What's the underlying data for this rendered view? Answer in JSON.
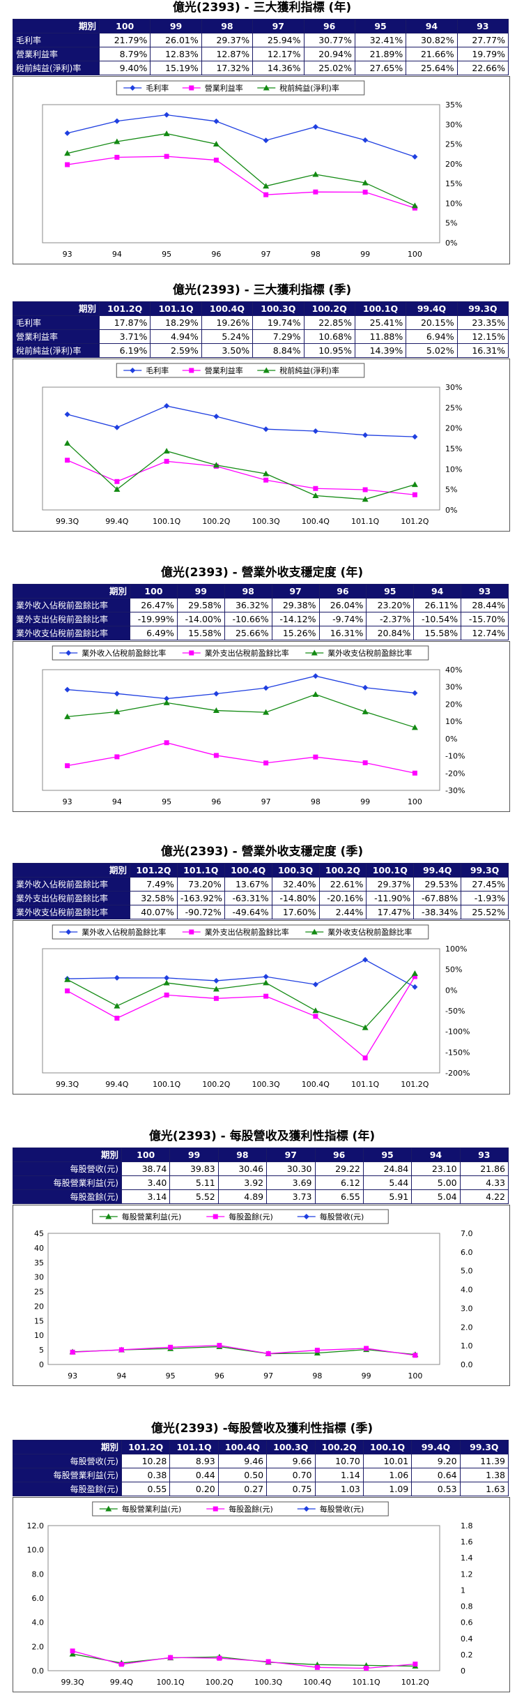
{
  "sections": [
    {
      "title": "億光(2393) - 三大獲利指標 (年)",
      "table": {
        "header_label": "期別",
        "columns": [
          "100",
          "99",
          "98",
          "97",
          "96",
          "95",
          "94",
          "93"
        ],
        "rows": [
          {
            "label": "毛利率",
            "values": [
              "21.79%",
              "26.01%",
              "29.37%",
              "25.94%",
              "30.77%",
              "32.41%",
              "30.82%",
              "27.77%"
            ]
          },
          {
            "label": "營業利益率",
            "values": [
              "8.79%",
              "12.83%",
              "12.87%",
              "12.17%",
              "20.94%",
              "21.89%",
              "21.66%",
              "19.79%"
            ]
          },
          {
            "label": "稅前純益(淨利)率",
            "values": [
              "9.40%",
              "15.19%",
              "17.32%",
              "14.36%",
              "25.02%",
              "27.65%",
              "25.64%",
              "22.66%"
            ]
          }
        ]
      }
    },
    {
      "title": "億光(2393) - 三大獲利指標 (季)",
      "table": {
        "header_label": "期別",
        "columns": [
          "101.2Q",
          "101.1Q",
          "100.4Q",
          "100.3Q",
          "100.2Q",
          "100.1Q",
          "99.4Q",
          "99.3Q"
        ],
        "rows": [
          {
            "label": "毛利率",
            "values": [
              "17.87%",
              "18.29%",
              "19.26%",
              "19.74%",
              "22.85%",
              "25.41%",
              "20.15%",
              "23.35%"
            ]
          },
          {
            "label": "營業利益率",
            "values": [
              "3.71%",
              "4.94%",
              "5.24%",
              "7.29%",
              "10.68%",
              "11.88%",
              "6.94%",
              "12.15%"
            ]
          },
          {
            "label": "稅前純益(淨利)率",
            "values": [
              "6.19%",
              "2.59%",
              "3.50%",
              "8.84%",
              "10.95%",
              "14.39%",
              "5.02%",
              "16.31%"
            ]
          }
        ]
      }
    },
    {
      "title": "億光(2393) - 營業外收支穩定度 (年)",
      "table": {
        "header_label": "期別",
        "columns": [
          "100",
          "99",
          "98",
          "97",
          "96",
          "95",
          "94",
          "93"
        ],
        "rows": [
          {
            "label": "業外收入佔稅前盈餘比率",
            "values": [
              "26.47%",
              "29.58%",
              "36.32%",
              "29.38%",
              "26.04%",
              "23.20%",
              "26.11%",
              "28.44%"
            ]
          },
          {
            "label": "業外支出佔稅前盈餘比率",
            "values": [
              "-19.99%",
              "-14.00%",
              "-10.66%",
              "-14.12%",
              "-9.74%",
              "-2.37%",
              "-10.54%",
              "-15.70%"
            ]
          },
          {
            "label": "業外收支佔稅前盈餘比率",
            "values": [
              "6.49%",
              "15.58%",
              "25.66%",
              "15.26%",
              "16.31%",
              "20.84%",
              "15.58%",
              "12.74%"
            ]
          }
        ]
      }
    },
    {
      "title": "億光(2393) - 營業外收支穩定度 (季)",
      "table": {
        "header_label": "期別",
        "columns": [
          "101.2Q",
          "101.1Q",
          "100.4Q",
          "100.3Q",
          "100.2Q",
          "100.1Q",
          "99.4Q",
          "99.3Q"
        ],
        "rows": [
          {
            "label": "業外收入佔稅前盈餘比率",
            "values": [
              "7.49%",
              "73.20%",
              "13.67%",
              "32.40%",
              "22.61%",
              "29.37%",
              "29.53%",
              "27.45%"
            ]
          },
          {
            "label": "業外支出佔稅前盈餘比率",
            "values": [
              "32.58%",
              "-163.92%",
              "-63.31%",
              "-14.80%",
              "-20.16%",
              "-11.90%",
              "-67.88%",
              "-1.93%"
            ]
          },
          {
            "label": "業外收支佔稅前盈餘比率",
            "values": [
              "40.07%",
              "-90.72%",
              "-49.64%",
              "17.60%",
              "2.44%",
              "17.47%",
              "-38.34%",
              "25.52%"
            ]
          }
        ]
      }
    },
    {
      "title": "億光(2393) - 每股營收及獲利性指標 (年)",
      "table": {
        "header_label": "期別",
        "columns": [
          "100",
          "99",
          "98",
          "97",
          "96",
          "95",
          "94",
          "93"
        ],
        "rows": [
          {
            "label": "每股營收(元)",
            "values": [
              "38.74",
              "39.83",
              "30.46",
              "30.30",
              "29.22",
              "24.84",
              "23.10",
              "21.86"
            ]
          },
          {
            "label": "每股營業利益(元)",
            "values": [
              "3.40",
              "5.11",
              "3.92",
              "3.69",
              "6.12",
              "5.44",
              "5.00",
              "4.33"
            ]
          },
          {
            "label": "每股盈餘(元)",
            "values": [
              "3.14",
              "5.52",
              "4.89",
              "3.73",
              "6.55",
              "5.91",
              "5.04",
              "4.22"
            ]
          }
        ]
      }
    },
    {
      "title": "億光(2393) -每股營收及獲利性指標 (季)",
      "table": {
        "header_label": "期別",
        "columns": [
          "101.2Q",
          "101.1Q",
          "100.4Q",
          "100.3Q",
          "100.2Q",
          "100.1Q",
          "99.4Q",
          "99.3Q"
        ],
        "rows": [
          {
            "label": "每股營收(元)",
            "values": [
              "10.28",
              "8.93",
              "9.46",
              "9.66",
              "10.70",
              "10.01",
              "9.20",
              "11.39"
            ]
          },
          {
            "label": "每股營業利益(元)",
            "values": [
              "0.38",
              "0.44",
              "0.50",
              "0.70",
              "1.14",
              "1.06",
              "0.64",
              "1.38"
            ]
          },
          {
            "label": "每股盈餘(元)",
            "values": [
              "0.55",
              "0.20",
              "0.27",
              "0.75",
              "1.03",
              "1.09",
              "0.53",
              "1.63"
            ]
          }
        ]
      }
    }
  ],
  "colors": {
    "blue": "#1f3fe0",
    "magenta": "#ff00ff",
    "green": "#138a13",
    "header": "#10106e"
  },
  "chart_data": [
    {
      "type": "line",
      "categories": [
        "93",
        "94",
        "95",
        "96",
        "97",
        "98",
        "99",
        "100"
      ],
      "series": [
        {
          "name": "毛利率",
          "color": "#1f3fe0",
          "marker": "diamond",
          "values": [
            27.77,
            30.82,
            32.41,
            30.77,
            25.94,
            29.37,
            26.01,
            21.79
          ]
        },
        {
          "name": "營業利益率",
          "color": "#ff00ff",
          "marker": "square",
          "values": [
            19.79,
            21.66,
            21.89,
            20.94,
            12.17,
            12.87,
            12.83,
            8.79
          ]
        },
        {
          "name": "稅前純益(淨利)率",
          "color": "#138a13",
          "marker": "triangle",
          "values": [
            22.66,
            25.64,
            27.65,
            25.02,
            14.36,
            17.32,
            15.19,
            9.4
          ]
        }
      ],
      "y_axis": "right",
      "ylim": [
        0,
        35
      ],
      "yticks": [
        0,
        5,
        10,
        15,
        20,
        25,
        30,
        35
      ],
      "ytick_labels": [
        "0%",
        "5%",
        "10%",
        "15%",
        "20%",
        "25%",
        "30%",
        "35%"
      ],
      "legend": "top"
    },
    {
      "type": "line",
      "categories": [
        "99.3Q",
        "99.4Q",
        "100.1Q",
        "100.2Q",
        "100.3Q",
        "100.4Q",
        "101.1Q",
        "101.2Q"
      ],
      "series": [
        {
          "name": "毛利率",
          "color": "#1f3fe0",
          "marker": "diamond",
          "values": [
            23.35,
            20.15,
            25.41,
            22.85,
            19.74,
            19.26,
            18.29,
            17.87
          ]
        },
        {
          "name": "營業利益率",
          "color": "#ff00ff",
          "marker": "square",
          "values": [
            12.15,
            6.94,
            11.88,
            10.68,
            7.29,
            5.24,
            4.94,
            3.71
          ]
        },
        {
          "name": "稅前純益(淨利)率",
          "color": "#138a13",
          "marker": "triangle",
          "values": [
            16.31,
            5.02,
            14.39,
            10.95,
            8.84,
            3.5,
            2.59,
            6.19
          ]
        }
      ],
      "y_axis": "right",
      "ylim": [
        0,
        30
      ],
      "yticks": [
        0,
        5,
        10,
        15,
        20,
        25,
        30
      ],
      "ytick_labels": [
        "0%",
        "5%",
        "10%",
        "15%",
        "20%",
        "25%",
        "30%"
      ],
      "legend": "top"
    },
    {
      "type": "line",
      "categories": [
        "93",
        "94",
        "95",
        "96",
        "97",
        "98",
        "99",
        "100"
      ],
      "series": [
        {
          "name": "業外收入佔稅前盈餘比率",
          "color": "#1f3fe0",
          "marker": "diamond",
          "values": [
            28.44,
            26.11,
            23.2,
            26.04,
            29.38,
            36.32,
            29.58,
            26.47
          ]
        },
        {
          "name": "業外支出佔稅前盈餘比率",
          "color": "#ff00ff",
          "marker": "square",
          "values": [
            -15.7,
            -10.54,
            -2.37,
            -9.74,
            -14.12,
            -10.66,
            -14.0,
            -19.99
          ]
        },
        {
          "name": "業外收支佔稅前盈餘比率",
          "color": "#138a13",
          "marker": "triangle",
          "values": [
            12.74,
            15.58,
            20.84,
            16.31,
            15.26,
            25.66,
            15.58,
            6.49
          ]
        }
      ],
      "y_axis": "right",
      "ylim": [
        -30,
        40
      ],
      "yticks": [
        -30,
        -20,
        -10,
        0,
        10,
        20,
        30,
        40
      ],
      "ytick_labels": [
        "-30%",
        "-20%",
        "-10%",
        "0%",
        "10%",
        "20%",
        "30%",
        "40%"
      ],
      "legend": "top"
    },
    {
      "type": "line",
      "categories": [
        "99.3Q",
        "99.4Q",
        "100.1Q",
        "100.2Q",
        "100.3Q",
        "100.4Q",
        "101.1Q",
        "101.2Q"
      ],
      "series": [
        {
          "name": "業外收入佔稅前盈餘比率",
          "color": "#1f3fe0",
          "marker": "diamond",
          "values": [
            27.45,
            29.53,
            29.37,
            22.61,
            32.4,
            13.67,
            73.2,
            7.49
          ]
        },
        {
          "name": "業外支出佔稅前盈餘比率",
          "color": "#ff00ff",
          "marker": "square",
          "values": [
            -1.93,
            -67.88,
            -11.9,
            -20.16,
            -14.8,
            -63.31,
            -163.92,
            32.58
          ]
        },
        {
          "name": "業外收支佔稅前盈餘比率",
          "color": "#138a13",
          "marker": "triangle",
          "values": [
            25.52,
            -38.34,
            17.47,
            2.44,
            17.6,
            -49.64,
            -90.72,
            40.07
          ]
        }
      ],
      "y_axis": "right",
      "ylim": [
        -200,
        100
      ],
      "yticks": [
        -200,
        -150,
        -100,
        -50,
        0,
        50,
        100
      ],
      "ytick_labels": [
        "-200%",
        "-150%",
        "-100%",
        "-50%",
        "0%",
        "50%",
        "100%"
      ],
      "legend": "top"
    },
    {
      "type": "line",
      "categories": [
        "93",
        "94",
        "95",
        "96",
        "97",
        "98",
        "99",
        "100"
      ],
      "series": [
        {
          "name": "每股營業利益(元)",
          "color": "#138a13",
          "marker": "triangle",
          "axis": "left",
          "values": [
            4.33,
            5.0,
            5.44,
            6.12,
            3.69,
            3.92,
            5.11,
            3.4
          ]
        },
        {
          "name": "每股盈餘(元)",
          "color": "#ff00ff",
          "marker": "square",
          "axis": "left",
          "values": [
            4.22,
            5.04,
            5.91,
            6.55,
            3.73,
            4.89,
            5.52,
            3.14
          ]
        },
        {
          "name": "每股營收(元)",
          "color": "#1f3fe0",
          "marker": "diamond",
          "axis": "right",
          "values": [
            21.86,
            23.1,
            24.84,
            29.22,
            30.3,
            30.46,
            39.83,
            38.74
          ]
        }
      ],
      "left_axis": {
        "ylim": [
          0,
          45
        ],
        "yticks": [
          0,
          5,
          10,
          15,
          20,
          25,
          30,
          35,
          40,
          45
        ],
        "ytick_labels": [
          "0",
          "5",
          "10",
          "15",
          "20",
          "25",
          "30",
          "35",
          "40",
          "45"
        ]
      },
      "right_axis": {
        "ylim": [
          0,
          7
        ],
        "yticks": [
          0,
          1,
          2,
          3,
          4,
          5,
          6,
          7
        ],
        "ytick_labels": [
          "0.0",
          "1.0",
          "2.0",
          "3.0",
          "4.0",
          "5.0",
          "6.0",
          "7.0"
        ]
      },
      "legend": "top"
    },
    {
      "type": "line",
      "categories": [
        "99.3Q",
        "99.4Q",
        "100.1Q",
        "100.2Q",
        "100.3Q",
        "100.4Q",
        "101.1Q",
        "101.2Q"
      ],
      "series": [
        {
          "name": "每股營業利益(元)",
          "color": "#138a13",
          "marker": "triangle",
          "axis": "left",
          "values": [
            1.38,
            0.64,
            1.06,
            1.14,
            0.7,
            0.5,
            0.44,
            0.38
          ]
        },
        {
          "name": "每股盈餘(元)",
          "color": "#ff00ff",
          "marker": "square",
          "axis": "left",
          "values": [
            1.63,
            0.53,
            1.09,
            1.03,
            0.75,
            0.27,
            0.2,
            0.55
          ]
        },
        {
          "name": "每股營收(元)",
          "color": "#1f3fe0",
          "marker": "diamond",
          "axis": "right",
          "values": [
            11.39,
            9.2,
            10.01,
            10.7,
            9.66,
            9.46,
            8.93,
            10.28
          ]
        }
      ],
      "left_axis": {
        "ylim": [
          0,
          12
        ],
        "yticks": [
          0,
          2,
          4,
          6,
          8,
          10,
          12
        ],
        "ytick_labels": [
          "0.0",
          "2.0",
          "4.0",
          "6.0",
          "8.0",
          "10.0",
          "12.0"
        ]
      },
      "right_axis": {
        "ylim": [
          0,
          1.8
        ],
        "yticks": [
          0,
          0.2,
          0.4,
          0.6,
          0.8,
          1.0,
          1.2,
          1.4,
          1.6,
          1.8
        ],
        "ytick_labels": [
          "0",
          "0.2",
          "0.4",
          "0.6",
          "0.8",
          "1",
          "1.2",
          "1.4",
          "1.6",
          "1.8"
        ]
      },
      "legend": "top"
    }
  ]
}
